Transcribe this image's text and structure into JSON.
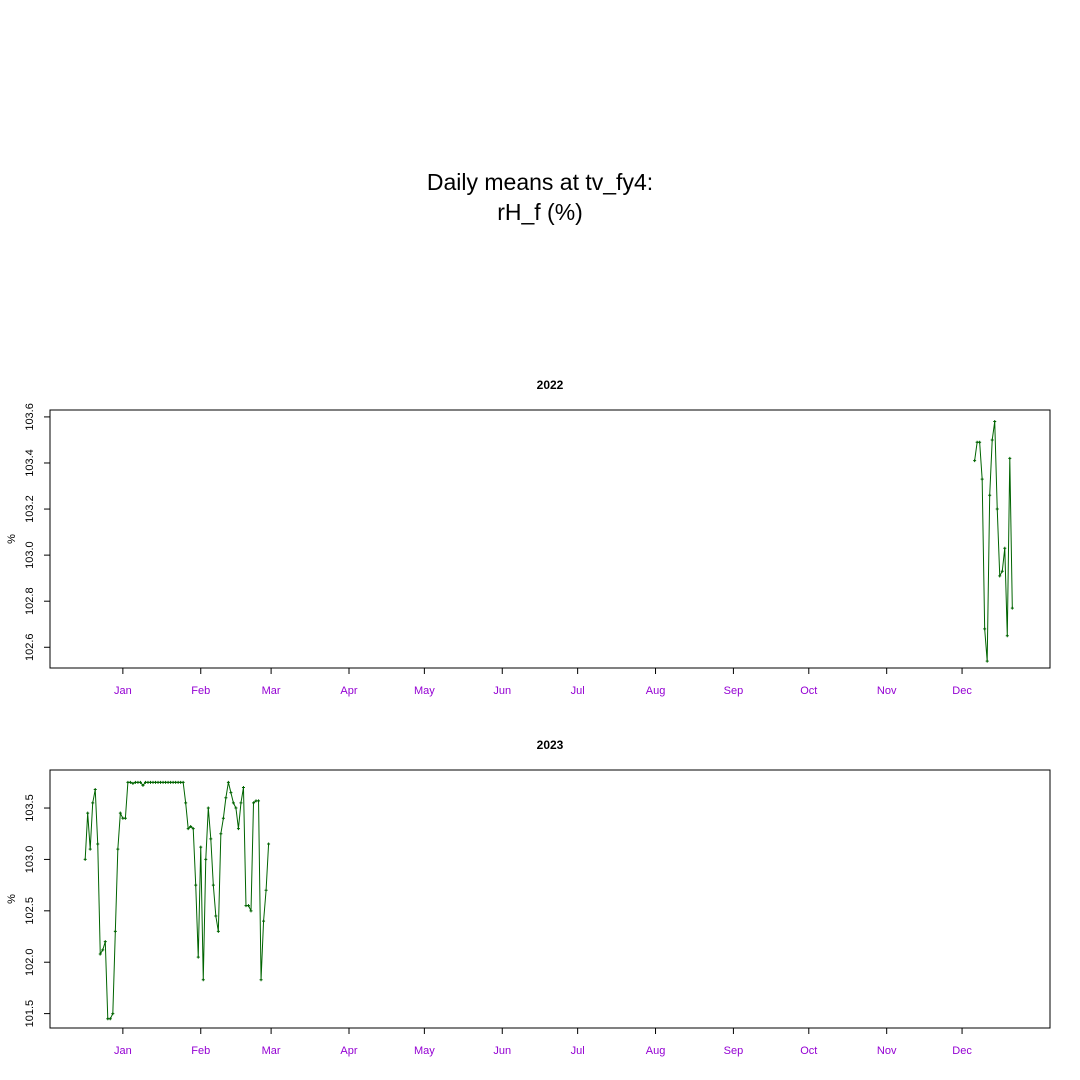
{
  "title": [
    "Daily means at tv_fy4:",
    "rH_f (%)"
  ],
  "chart_data": [
    {
      "type": "line",
      "title": "2022",
      "ylabel": "%",
      "color": "#006400",
      "tick_label_color": "#9400D3",
      "xlim": [
        -28,
        370
      ],
      "xticks": [
        {
          "value": 1,
          "label": "Jan"
        },
        {
          "value": 32,
          "label": "Feb"
        },
        {
          "value": 60,
          "label": "Mar"
        },
        {
          "value": 91,
          "label": "Apr"
        },
        {
          "value": 121,
          "label": "May"
        },
        {
          "value": 152,
          "label": "Jun"
        },
        {
          "value": 182,
          "label": "Jul"
        },
        {
          "value": 213,
          "label": "Aug"
        },
        {
          "value": 244,
          "label": "Sep"
        },
        {
          "value": 274,
          "label": "Oct"
        },
        {
          "value": 305,
          "label": "Nov"
        },
        {
          "value": 335,
          "label": "Dec"
        }
      ],
      "ylim": [
        102.51,
        103.63
      ],
      "yticks": [
        102.6,
        102.8,
        {
          "value": 103,
          "label": "103.0"
        },
        103.2,
        103.4,
        103.6
      ],
      "x": [
        340,
        341,
        342,
        343,
        344,
        345,
        346,
        347,
        348,
        349,
        350,
        351,
        352,
        353,
        354,
        355
      ],
      "values": [
        103.41,
        103.49,
        103.49,
        103.33,
        102.68,
        102.54,
        103.26,
        103.5,
        103.58,
        103.2,
        102.91,
        102.93,
        103.03,
        102.65,
        103.42,
        102.77
      ]
    },
    {
      "type": "line",
      "title": "2023",
      "ylabel": "%",
      "color": "#006400",
      "tick_label_color": "#9400D3",
      "xlim": [
        -28,
        370
      ],
      "xticks": [
        {
          "value": 1,
          "label": "Jan"
        },
        {
          "value": 32,
          "label": "Feb"
        },
        {
          "value": 60,
          "label": "Mar"
        },
        {
          "value": 91,
          "label": "Apr"
        },
        {
          "value": 121,
          "label": "May"
        },
        {
          "value": 152,
          "label": "Jun"
        },
        {
          "value": 182,
          "label": "Jul"
        },
        {
          "value": 213,
          "label": "Aug"
        },
        {
          "value": 244,
          "label": "Sep"
        },
        {
          "value": 274,
          "label": "Oct"
        },
        {
          "value": 305,
          "label": "Nov"
        },
        {
          "value": 335,
          "label": "Dec"
        }
      ],
      "ylim": [
        101.36,
        103.87
      ],
      "yticks": [
        101.5,
        {
          "value": 102,
          "label": "102.0"
        },
        102.5,
        {
          "value": 103,
          "label": "103.0"
        },
        103.5
      ],
      "x": [
        -14,
        -13,
        -12,
        -11,
        -10,
        -9,
        -8,
        -7,
        -6,
        -5,
        -4,
        -3,
        -2,
        -1,
        0,
        1,
        2,
        3,
        4,
        5,
        6,
        7,
        8,
        9,
        10,
        11,
        12,
        13,
        14,
        15,
        16,
        17,
        18,
        19,
        20,
        21,
        22,
        23,
        24,
        25,
        26,
        27,
        28,
        29,
        30,
        31,
        32,
        33,
        34,
        35,
        36,
        37,
        38,
        39,
        40,
        41,
        42,
        43,
        44,
        45,
        46,
        47,
        48,
        49,
        50,
        51,
        52,
        53,
        54,
        55,
        56,
        57,
        58,
        59
      ],
      "values": [
        103.0,
        103.45,
        103.1,
        103.55,
        103.68,
        103.15,
        102.08,
        102.12,
        102.2,
        101.45,
        101.45,
        101.5,
        102.3,
        103.1,
        103.45,
        103.4,
        103.4,
        103.75,
        103.75,
        103.74,
        103.75,
        103.75,
        103.75,
        103.72,
        103.75,
        103.75,
        103.75,
        103.75,
        103.75,
        103.75,
        103.75,
        103.75,
        103.75,
        103.75,
        103.75,
        103.75,
        103.75,
        103.75,
        103.75,
        103.75,
        103.55,
        103.3,
        103.32,
        103.3,
        102.75,
        102.05,
        103.12,
        101.83,
        103.0,
        103.5,
        103.2,
        102.75,
        102.45,
        102.3,
        103.25,
        103.4,
        103.6,
        103.75,
        103.65,
        103.55,
        103.5,
        103.3,
        103.55,
        103.7,
        102.55,
        102.55,
        102.5,
        103.55,
        103.57,
        103.57,
        101.83,
        102.4,
        102.7,
        103.15
      ]
    }
  ]
}
